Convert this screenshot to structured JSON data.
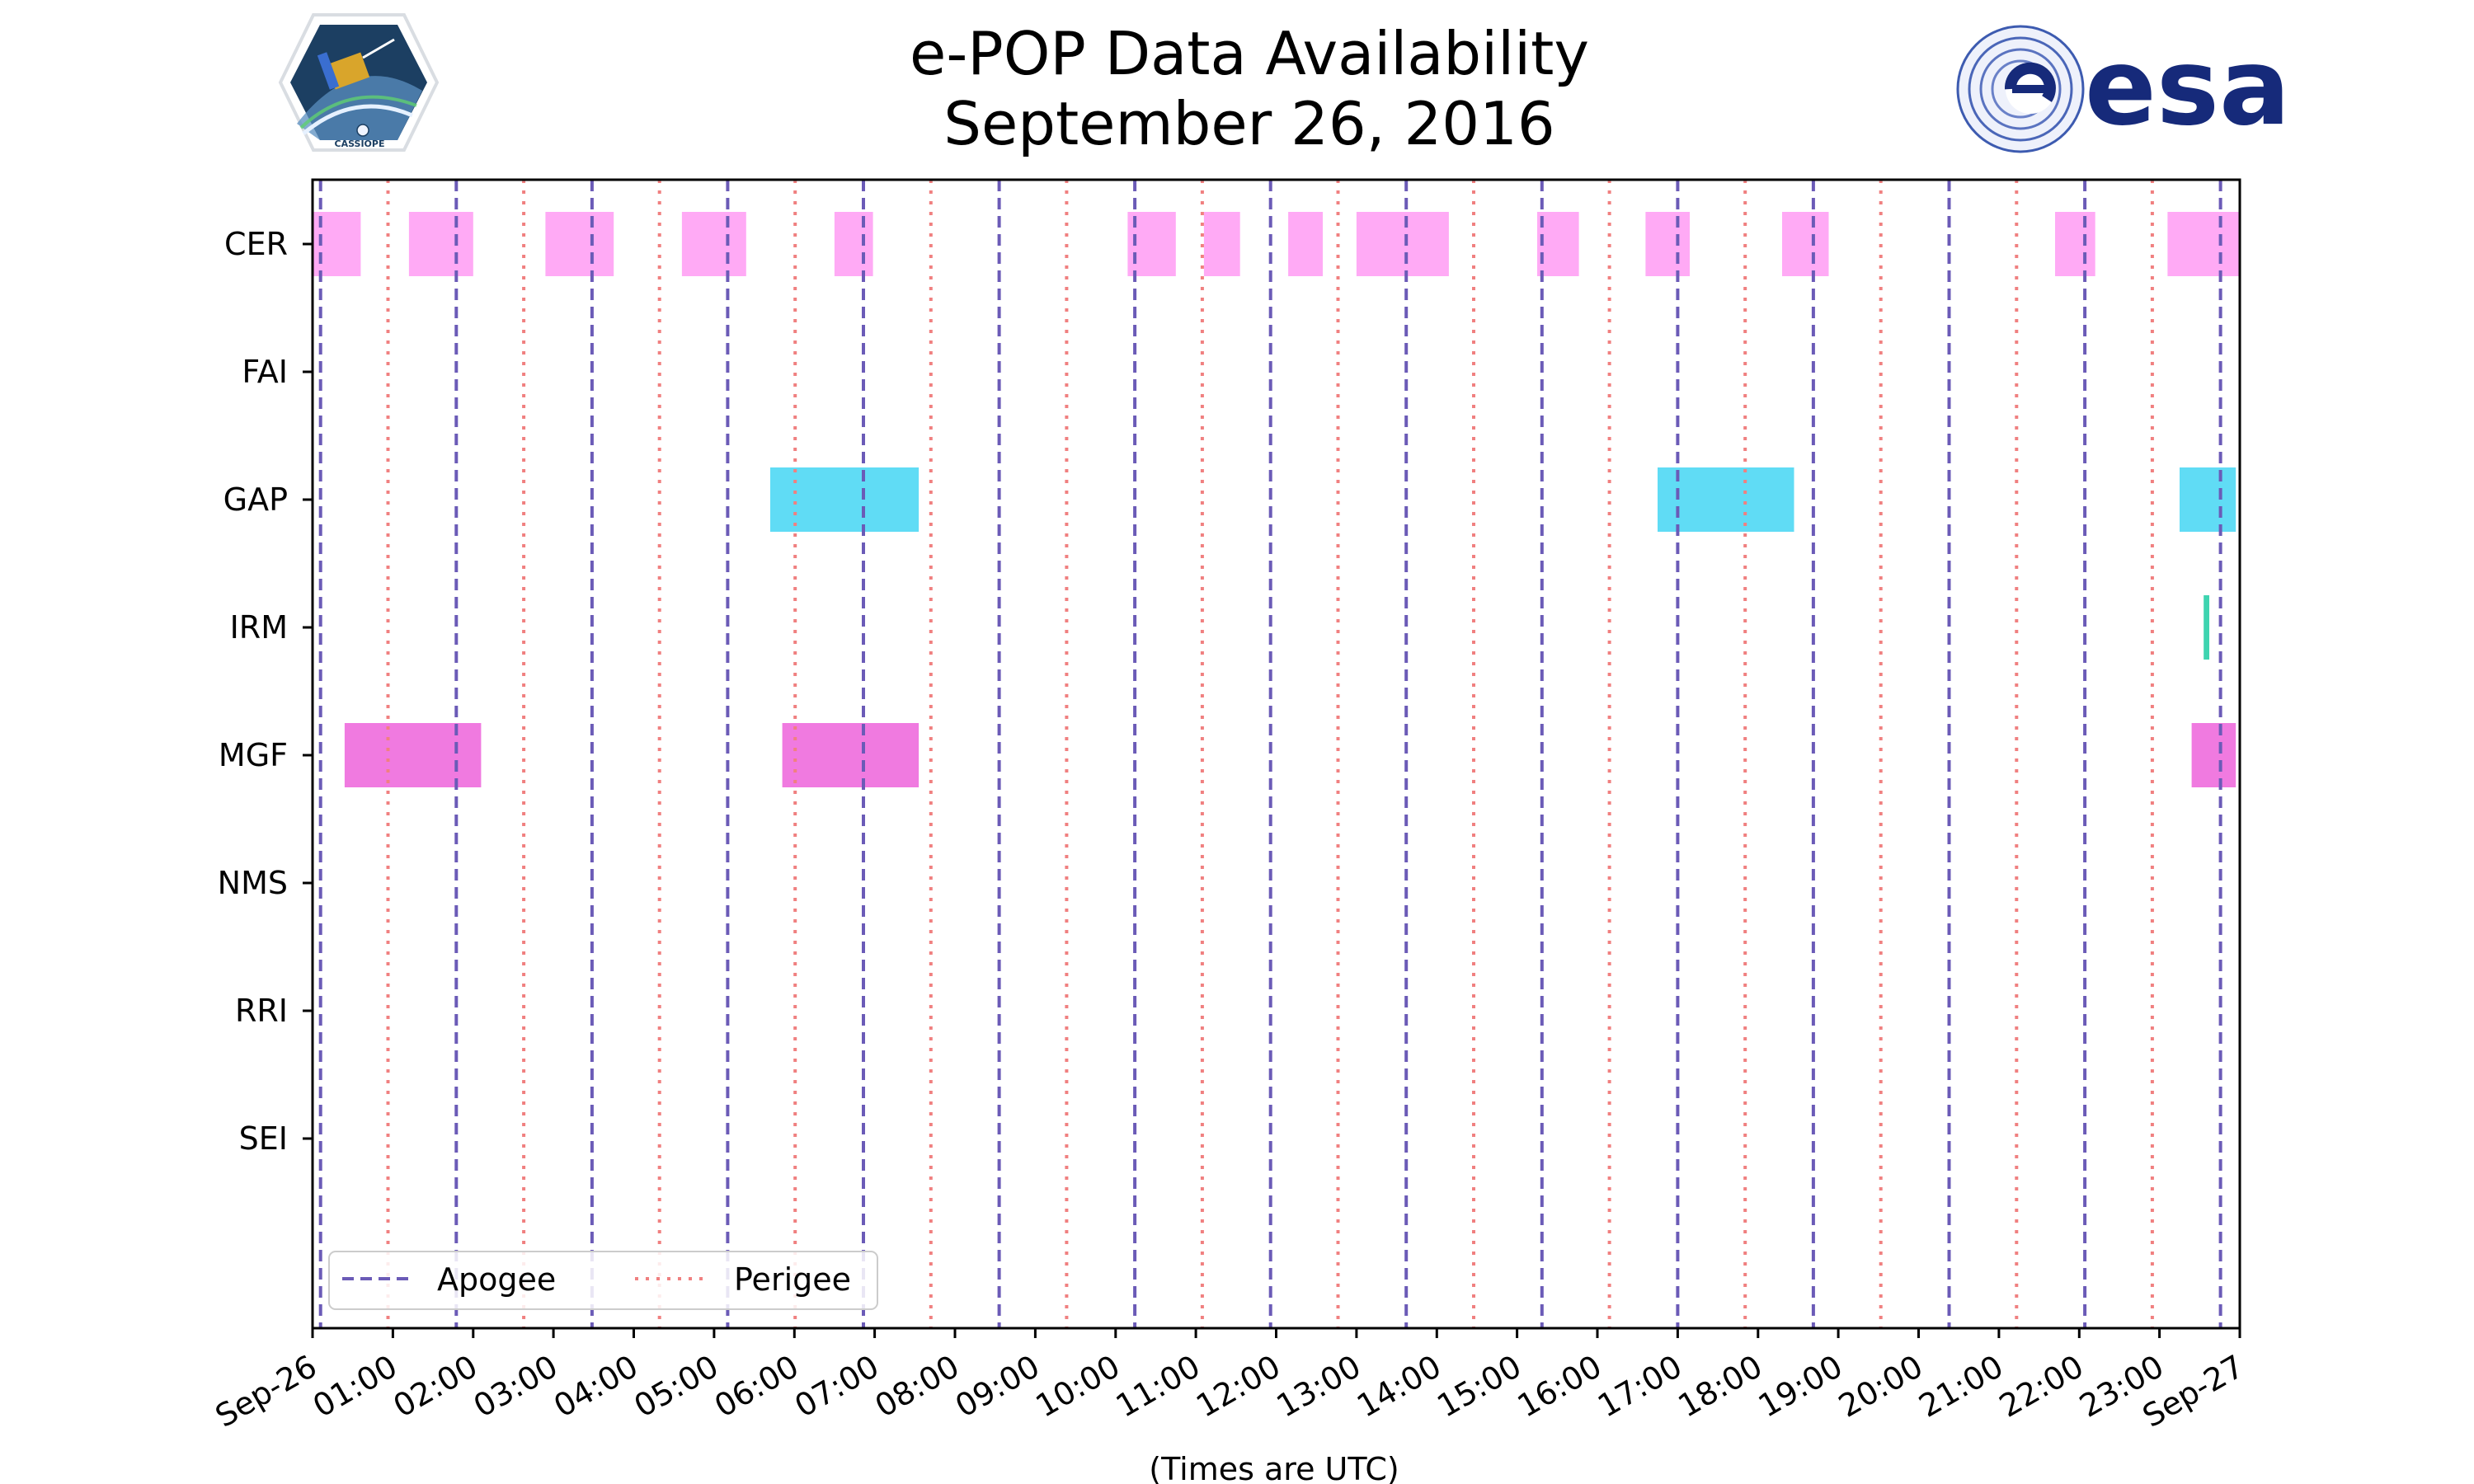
{
  "chart_data": {
    "type": "timeline",
    "title": [
      "e-POP Data Availability",
      "September 26, 2016"
    ],
    "xlabel": "(Times are UTC)",
    "xlim": [
      0,
      24
    ],
    "x_unit": "hours UTC",
    "x_ticks": [
      "Sep-26",
      "01:00",
      "02:00",
      "03:00",
      "04:00",
      "05:00",
      "06:00",
      "07:00",
      "08:00",
      "09:00",
      "10:00",
      "11:00",
      "12:00",
      "13:00",
      "14:00",
      "15:00",
      "16:00",
      "17:00",
      "18:00",
      "19:00",
      "20:00",
      "21:00",
      "22:00",
      "23:00",
      "Sep-27"
    ],
    "instruments": [
      "CER",
      "FAI",
      "GAP",
      "IRM",
      "MGF",
      "NMS",
      "RRI",
      "SEI"
    ],
    "intervals": {
      "CER": [
        [
          0.0,
          0.6
        ],
        [
          1.2,
          2.0
        ],
        [
          2.9,
          3.75
        ],
        [
          4.6,
          5.4
        ],
        [
          6.5,
          6.98
        ],
        [
          10.15,
          10.75
        ],
        [
          11.1,
          11.55
        ],
        [
          12.15,
          12.58
        ],
        [
          13.0,
          14.15
        ],
        [
          15.25,
          15.77
        ],
        [
          16.6,
          17.15
        ],
        [
          18.3,
          18.88
        ],
        [
          21.7,
          22.2
        ],
        [
          23.1,
          24.0
        ]
      ],
      "FAI": [],
      "GAP": [
        [
          5.7,
          7.55
        ]
      ],
      "GAP_2": [
        [
          16.75,
          18.45
        ],
        [
          23.25,
          23.95
        ]
      ],
      "IRM": [
        [
          23.55,
          23.62
        ]
      ],
      "MGF": [
        [
          0.4,
          2.1
        ],
        [
          5.85,
          7.55
        ],
        [
          23.4,
          23.95
        ]
      ],
      "NMS": [],
      "RRI": [],
      "SEI": []
    },
    "colors": {
      "CER": "#ffaaf5",
      "GAP": "#60dcf5",
      "IRM": "#3ed4b0",
      "MGF": "#f07ae0",
      "apogee": "#6b5bb7",
      "perigee": "#f08080"
    },
    "apogee_times": [
      0.1,
      1.79,
      3.48,
      5.17,
      6.86,
      8.55,
      10.24,
      11.93,
      13.62,
      15.31,
      17.0,
      18.69,
      20.38,
      22.07,
      23.76
    ],
    "perigee_times": [
      0.94,
      2.63,
      4.32,
      6.01,
      7.7,
      9.39,
      11.08,
      12.77,
      14.46,
      16.15,
      17.84,
      19.53,
      21.22,
      22.91
    ],
    "legend": {
      "entries": [
        "Apogee",
        "Perigee"
      ],
      "position": "bottom-left"
    },
    "logos": {
      "right": "esa",
      "left_caption": "CASSIOPE"
    }
  }
}
